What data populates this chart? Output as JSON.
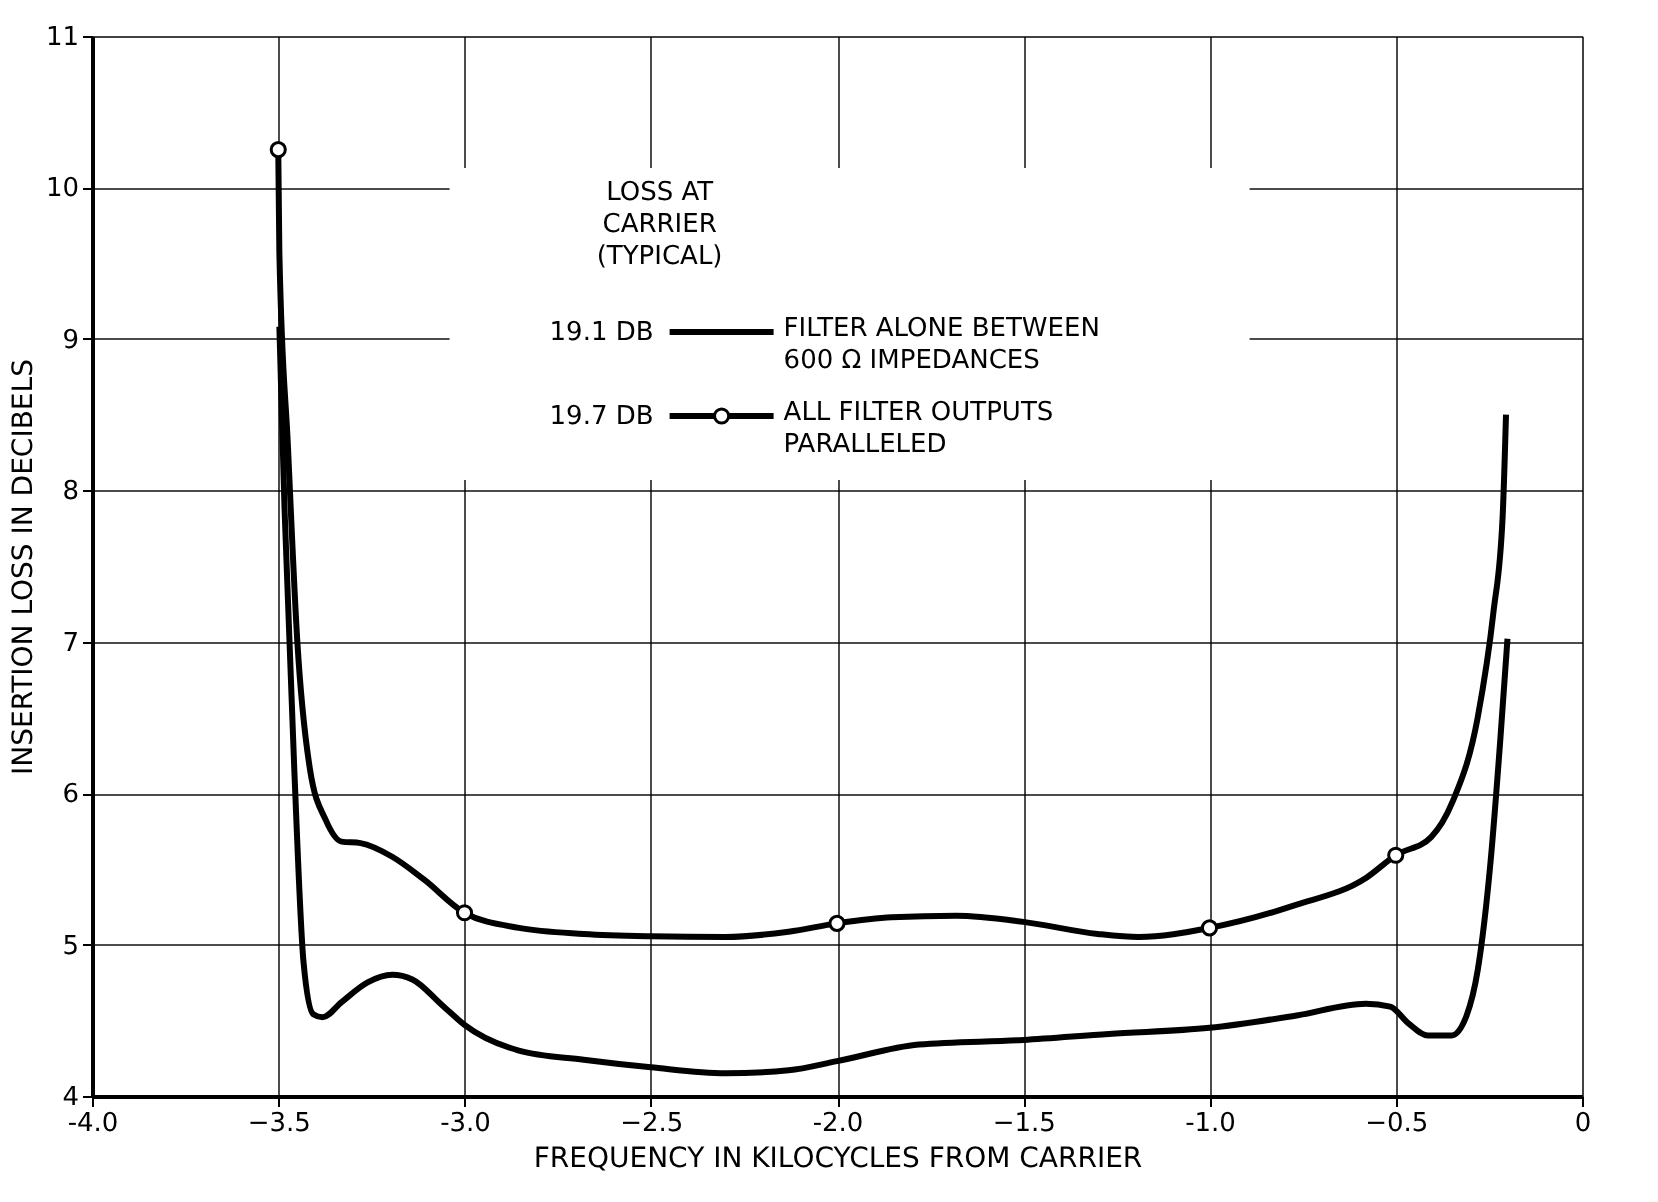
{
  "chart_data": {
    "type": "line",
    "xlabel": "FREQUENCY IN KILOCYCLES FROM CARRIER",
    "ylabel": "INSERTION LOSS IN DECIBELS",
    "legend_title": "LOSS AT\nCARRIER\n(TYPICAL)",
    "annotations": [
      "19.1 DB",
      "19.7 DB"
    ],
    "xlim": [
      -4,
      0
    ],
    "ylim": [
      4,
      11
    ],
    "xticks": [
      {
        "value": -4,
        "label": "-4.0"
      },
      -3.5,
      {
        "value": -3,
        "label": "-3.0"
      },
      -2.5,
      {
        "value": -2,
        "label": "-2.0"
      },
      -1.5,
      {
        "value": -1,
        "label": "-1.0"
      },
      -0.5,
      0
    ],
    "yticks": [
      4,
      5,
      6,
      7,
      8,
      9,
      10,
      11
    ],
    "grid": true,
    "legend": "top",
    "line_style": "solid",
    "series": [
      {
        "name": "FILTER ALONE BETWEEN\n600 Ω IMPEDANCES",
        "color": "#000000",
        "marker": "none",
        "x": [
          -3.497,
          -3.483,
          -3.457,
          -3.432,
          -3.406,
          -3.381,
          -3.33,
          -3.26,
          -3.194,
          -3.14,
          -3.06,
          -3.0,
          -2.854,
          -2.68,
          -2.5,
          -2.3,
          -2.13,
          -2.0,
          -1.78,
          -1.5,
          -1.27,
          -1.0,
          -0.77,
          -0.58,
          -0.515,
          -0.466,
          -0.414,
          -0.35,
          -0.31,
          -0.28,
          -0.245,
          -0.22,
          -0.2
        ],
        "values": [
          9.08,
          7.87,
          6.16,
          4.88,
          4.54,
          4.52,
          4.62,
          4.75,
          4.8,
          4.77,
          4.6,
          4.47,
          4.3,
          4.24,
          4.19,
          4.15,
          4.17,
          4.23,
          4.34,
          4.37,
          4.41,
          4.45,
          4.53,
          4.61,
          4.59,
          4.48,
          4.4,
          4.4,
          4.53,
          4.83,
          5.56,
          6.33,
          7.02
        ]
      },
      {
        "name": "ALL FILTER OUTPUTS\nPARALLELED",
        "color": "#000000",
        "marker": "none",
        "x": [
          -3.5,
          -3.497,
          -3.474,
          -3.449,
          -3.415,
          -3.372,
          -3.33,
          -3.279,
          -3.194,
          -3.109,
          -3.0,
          -2.854,
          -2.68,
          -2.5,
          -2.3,
          -2.13,
          -2.0,
          -1.853,
          -1.68,
          -1.5,
          -1.3,
          -1.19,
          -1.0,
          -0.77,
          -0.58,
          -0.5,
          -0.405,
          -0.348,
          -0.28,
          -0.238,
          -0.213,
          -0.204
        ],
        "values": [
          10.25,
          9.57,
          8.29,
          7.01,
          6.16,
          5.82,
          5.68,
          5.67,
          5.58,
          5.43,
          5.21,
          5.11,
          5.07,
          5.055,
          5.05,
          5.085,
          5.14,
          5.18,
          5.19,
          5.15,
          5.07,
          5.05,
          5.11,
          5.26,
          5.44,
          5.59,
          5.71,
          5.94,
          6.5,
          7.19,
          7.83,
          8.5
        ]
      },
      {
        "type": "scatter",
        "color": "#000000",
        "marker": "circle",
        "x": [
          -3.5,
          -3.0,
          -2.0,
          -1.0,
          -0.5
        ],
        "values": [
          10.25,
          5.21,
          5.14,
          5.11,
          5.59
        ]
      }
    ]
  }
}
